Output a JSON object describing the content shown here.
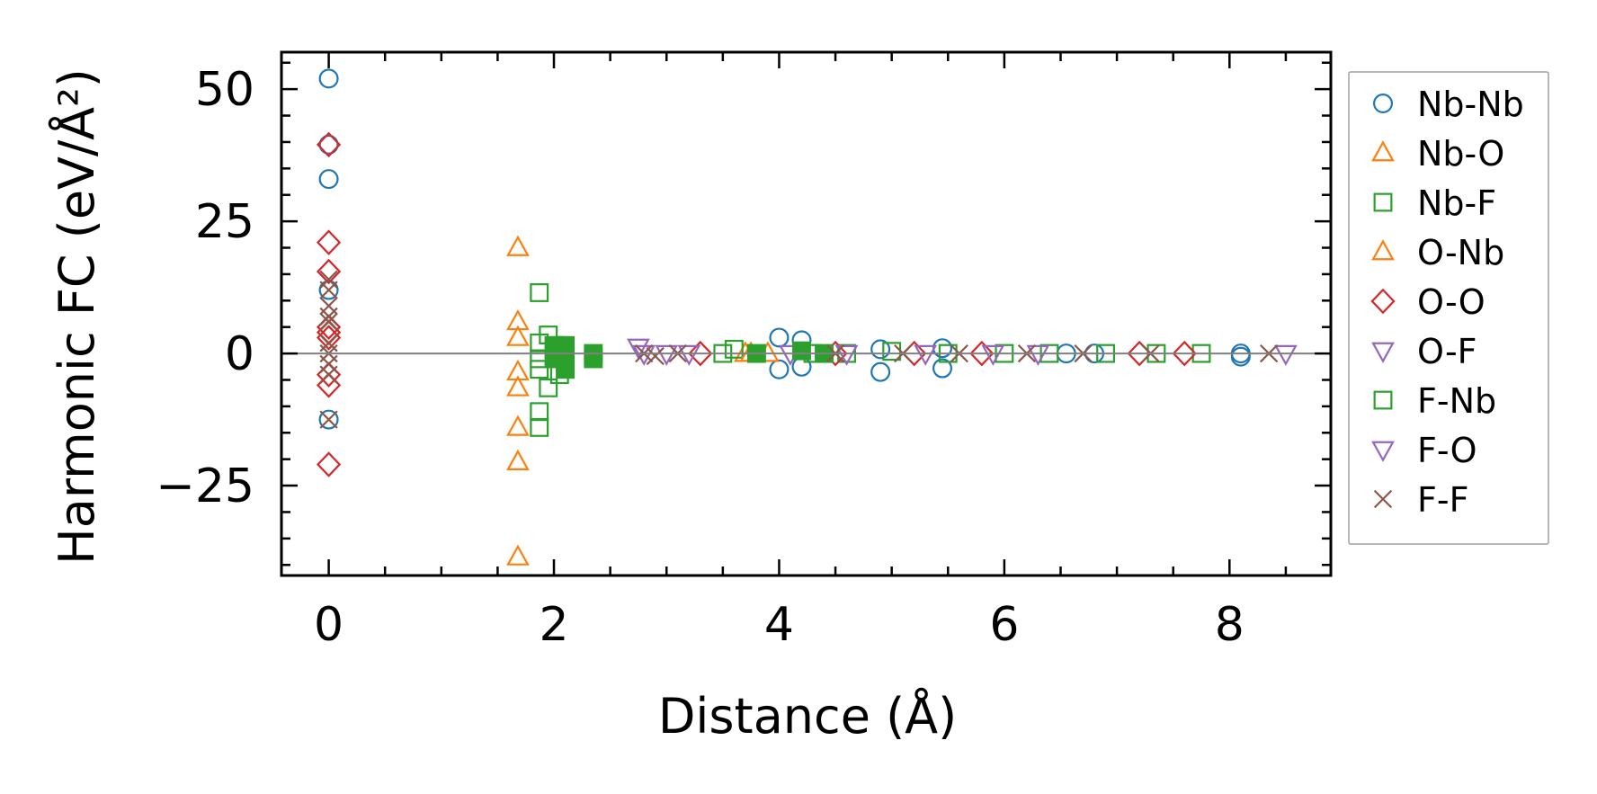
{
  "chart_data": {
    "type": "scatter",
    "xlabel": "Distance (Å)",
    "ylabel": "Harmonic FC (eV/Å²)",
    "xlim": [
      -0.42,
      8.9
    ],
    "ylim": [
      -42,
      57
    ],
    "xticks": [
      0,
      2,
      4,
      6,
      8
    ],
    "xtick_labels": [
      "0",
      "2",
      "4",
      "6",
      "8"
    ],
    "yticks": [
      -25,
      0,
      25,
      50
    ],
    "ytick_labels": [
      "−25",
      "0",
      "25",
      "50"
    ],
    "zero_line": true,
    "grid": false,
    "legend_position": "right, outside plot",
    "series": [
      {
        "name": "Nb-Nb",
        "color": "#1f77b4",
        "marker": "circle",
        "filled": false,
        "points": [
          [
            0,
            52
          ],
          [
            0,
            39.5
          ],
          [
            0,
            33
          ],
          [
            0,
            12
          ],
          [
            0,
            -12.5
          ],
          [
            4.0,
            3.0
          ],
          [
            4.0,
            -3.0
          ],
          [
            4.2,
            2.5
          ],
          [
            4.2,
            -2.5
          ],
          [
            4.9,
            0.8
          ],
          [
            4.9,
            -3.5
          ],
          [
            5.45,
            1.0
          ],
          [
            5.45,
            -2.8
          ],
          [
            6.55,
            0
          ],
          [
            6.8,
            0
          ],
          [
            8.1,
            0
          ],
          [
            8.1,
            -0.6
          ]
        ]
      },
      {
        "name": "Nb-O",
        "color": "#ff7f0e",
        "marker": "triangle-up",
        "filled": false,
        "points": [
          [
            1.68,
            20
          ],
          [
            1.68,
            6
          ],
          [
            1.68,
            3
          ],
          [
            1.68,
            -3.5
          ],
          [
            1.68,
            -6.5
          ],
          [
            1.68,
            -14
          ],
          [
            1.68,
            -20.5
          ],
          [
            1.68,
            -38.5
          ],
          [
            3.7,
            0
          ],
          [
            3.9,
            0
          ]
        ]
      },
      {
        "name": "Nb-F",
        "color": "#2ca02c",
        "marker": "square",
        "filled": false,
        "points": [
          [
            1.87,
            11.5
          ],
          [
            1.87,
            2
          ],
          [
            1.87,
            -1
          ],
          [
            1.87,
            -3
          ],
          [
            1.87,
            -11
          ],
          [
            1.87,
            -14
          ],
          [
            1.95,
            3.5
          ],
          [
            1.95,
            -6.5
          ],
          [
            2.05,
            1.5
          ],
          [
            2.05,
            -4
          ],
          [
            3.5,
            0
          ],
          [
            3.6,
            0.8
          ],
          [
            4.3,
            0
          ],
          [
            4.6,
            0
          ],
          [
            5.0,
            0.4
          ],
          [
            5.5,
            0
          ],
          [
            6.0,
            0
          ],
          [
            6.4,
            0
          ],
          [
            6.9,
            0
          ],
          [
            7.35,
            0
          ],
          [
            7.75,
            0
          ]
        ]
      },
      {
        "name": "O-Nb",
        "color": "#ff7f0e",
        "marker": "triangle-up",
        "filled": false,
        "points": [
          [
            3.75,
            0
          ]
        ]
      },
      {
        "name": "O-O",
        "color": "#d62728",
        "marker": "diamond",
        "filled": false,
        "points": [
          [
            0,
            39.5
          ],
          [
            0,
            21
          ],
          [
            0,
            15.5
          ],
          [
            0,
            5
          ],
          [
            0,
            4
          ],
          [
            0,
            3
          ],
          [
            0,
            -4
          ],
          [
            0,
            -6
          ],
          [
            0,
            -21
          ],
          [
            3.3,
            0
          ],
          [
            4.5,
            0
          ],
          [
            5.2,
            0
          ],
          [
            5.8,
            0
          ],
          [
            7.2,
            0
          ],
          [
            7.6,
            0
          ]
        ]
      },
      {
        "name": "O-F",
        "color": "#9467bd",
        "marker": "triangle-down",
        "filled": false,
        "points": [
          [
            2.75,
            1.2
          ],
          [
            4.1,
            0
          ],
          [
            5.3,
            0
          ],
          [
            6.3,
            0
          ]
        ]
      },
      {
        "name": "F-Nb",
        "color": "#2ca02c",
        "marker": "square",
        "filled": true,
        "points": [
          [
            2.0,
            1.5
          ],
          [
            2.0,
            -1
          ],
          [
            2.1,
            1.5
          ],
          [
            2.1,
            -1.5
          ],
          [
            2.1,
            -3
          ],
          [
            2.35,
            0
          ],
          [
            2.35,
            -1
          ],
          [
            3.8,
            0
          ],
          [
            4.2,
            0.5
          ],
          [
            4.4,
            0
          ]
        ]
      },
      {
        "name": "F-O",
        "color": "#9467bd",
        "marker": "triangle-down",
        "filled": false,
        "points": [
          [
            2.8,
            0
          ],
          [
            3.0,
            0
          ],
          [
            3.2,
            0
          ],
          [
            4.6,
            0
          ],
          [
            5.9,
            0
          ],
          [
            8.5,
            0
          ]
        ]
      },
      {
        "name": "F-F",
        "color": "#8c564b",
        "marker": "x",
        "filled": false,
        "points": [
          [
            0,
            14
          ],
          [
            0,
            12
          ],
          [
            0,
            9
          ],
          [
            0,
            7
          ],
          [
            0,
            6
          ],
          [
            0,
            2
          ],
          [
            0,
            0
          ],
          [
            0,
            -2
          ],
          [
            0,
            -4
          ],
          [
            0,
            -12.5
          ],
          [
            2.8,
            0
          ],
          [
            2.9,
            -0.5
          ],
          [
            3.1,
            0
          ],
          [
            4.5,
            0
          ],
          [
            5.1,
            0
          ],
          [
            5.6,
            0
          ],
          [
            6.2,
            0
          ],
          [
            6.7,
            0
          ],
          [
            7.3,
            0
          ],
          [
            8.35,
            0
          ]
        ]
      }
    ]
  }
}
